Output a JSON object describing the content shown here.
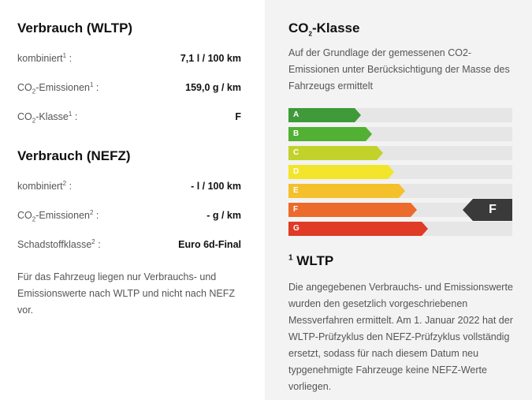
{
  "wltp": {
    "heading": "Verbrauch (WLTP)",
    "rows": [
      {
        "label_pre": "kombiniert",
        "label_sub": "",
        "label_post": "",
        "sup": "1",
        "value": "7,1 l / 100 km"
      },
      {
        "label_pre": "CO",
        "label_sub": "2",
        "label_post": "-Emissionen",
        "sup": "1",
        "value": "159,0 g / km"
      },
      {
        "label_pre": "CO",
        "label_sub": "2",
        "label_post": "-Klasse",
        "sup": "1",
        "value": "F"
      }
    ]
  },
  "nefz": {
    "heading": "Verbrauch (NEFZ)",
    "rows": [
      {
        "label_pre": "kombiniert",
        "label_sub": "",
        "label_post": "",
        "sup": "2",
        "value": "- l / 100 km"
      },
      {
        "label_pre": "CO",
        "label_sub": "2",
        "label_post": "-Emissionen",
        "sup": "2",
        "value": "- g / km"
      },
      {
        "label_pre": "Schadstoffklasse",
        "label_sub": "",
        "label_post": "",
        "sup": "2",
        "value": "Euro 6d-Final"
      }
    ],
    "note": "Für das Fahrzeug liegen nur Verbrauchs- und Emissionswerte nach WLTP und nicht nach NEFZ vor."
  },
  "co2": {
    "title_pre": "CO",
    "title_sub": "2",
    "title_post": "-Klasse",
    "description": "Auf der Grundlage der gemessenen CO2-Emissionen unter Berücksichtigung der Masse des Fahrzeugs ermittelt",
    "classes": [
      {
        "label": "A",
        "color": "#3f9a3a"
      },
      {
        "label": "B",
        "color": "#52b034"
      },
      {
        "label": "C",
        "color": "#c3d22b"
      },
      {
        "label": "D",
        "color": "#f2e52b"
      },
      {
        "label": "E",
        "color": "#f4c02c"
      },
      {
        "label": "F",
        "color": "#ec6a2c"
      },
      {
        "label": "G",
        "color": "#df3b27"
      }
    ],
    "active_class": "F"
  },
  "wltp_note": {
    "sup": "1",
    "title": "WLTP",
    "text": "Die angegebenen Verbrauchs- und Emissionswerte wurden den gesetzlich vorgeschriebenen Messverfahren ermittelt. Am 1. Januar 2022 hat der WLTP-Prüfzyklus den NEFZ-Prüfzyklus vollständig ersetzt, sodass für nach diesem Datum neu typgenehmigte Fahrzeuge keine NEFZ-Werte vorliegen."
  }
}
